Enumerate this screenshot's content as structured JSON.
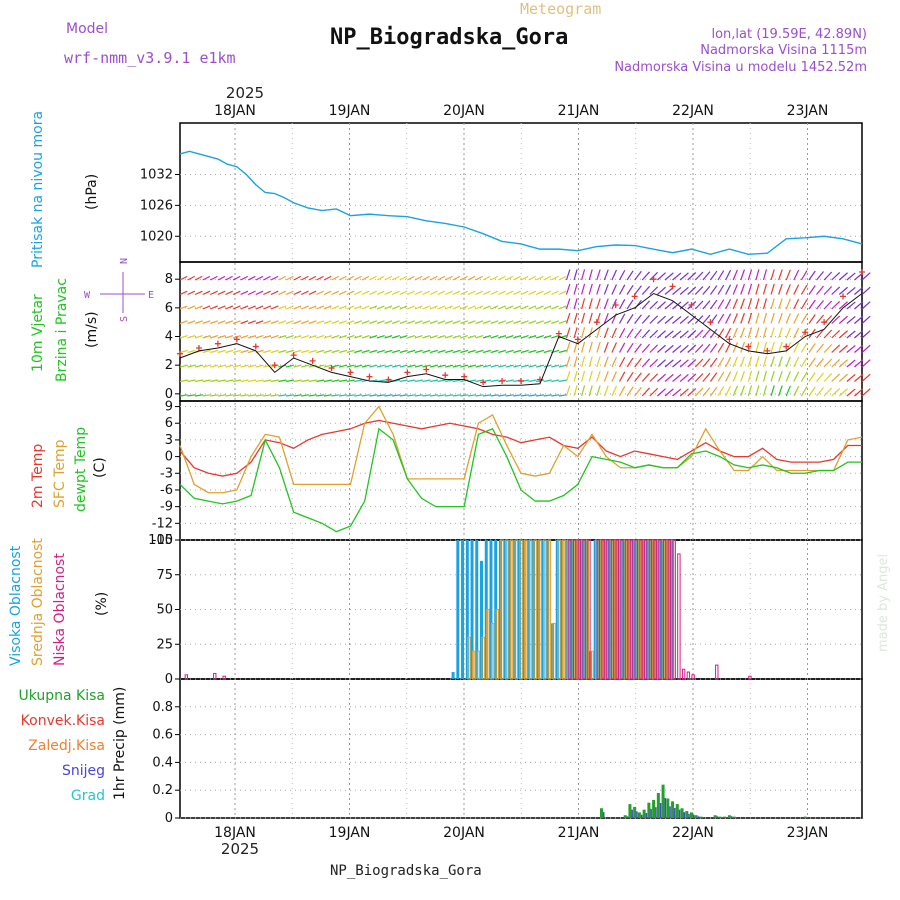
{
  "header": {
    "model_label": "Model",
    "model_name": "wrf-nmm_v3.9.1 e1km",
    "meteogram": "Meteogram",
    "station": "NP_Biogradska_Gora",
    "lonlat": "lon,lat (19.59E, 42.89N)",
    "elevation": "Nadmorska Visina 1115m",
    "model_elevation": "Nadmorska Visina u modelu 1452.52m",
    "watermark": "made by Angel",
    "footer_station": "NP_Biogradska_Gora"
  },
  "colors": {
    "pressure": "#1aa3e0",
    "temp": "#e8382e",
    "sfc_temp": "#e0a030",
    "dewpoint": "#22c422",
    "high_cloud": "#1aa3e0",
    "mid_cloud": "#e0a030",
    "low_cloud": "#d01f87",
    "precip_total": "#22a02a",
    "precip_conv": "#e8382e",
    "precip_strat": "#f08030",
    "snow": "#4646d6",
    "graupel": "#20c8c8",
    "model_label": "#9b4fcc"
  },
  "time_axis": {
    "year": "2025",
    "days": [
      "18JAN",
      "19JAN",
      "20JAN",
      "21JAN",
      "22JAN",
      "23JAN"
    ]
  },
  "panels": {
    "pressure": {
      "ylabel1": "Pritisak na nivou mora",
      "unit": "(hPa)",
      "ticks": [
        "1020",
        "1026",
        "1032"
      ]
    },
    "wind": {
      "ylabel1": "10m Vjetar",
      "ylabel2": "Brzina i Pravac",
      "unit": "(m/s)",
      "compass_n": "N",
      "compass_s": "S",
      "compass_w": "W",
      "compass_e": "E",
      "ticks": [
        "0",
        "2",
        "4",
        "6",
        "8"
      ]
    },
    "temp": {
      "ylabel1": "2m Temp",
      "ylabel2": "SFC Temp",
      "ylabel3": "dewpt Temp",
      "unit": "(C)",
      "ticks": [
        "-15",
        "-12",
        "-9",
        "-6",
        "-3",
        "0",
        "3",
        "6",
        "9"
      ]
    },
    "cloud": {
      "ylabel1": "Visoka Oblacnost",
      "ylabel2": "Srednja Oblacnost",
      "ylabel3": "Niska Oblacnost",
      "unit": "(%)",
      "ticks": [
        "0",
        "25",
        "50",
        "75",
        "100"
      ]
    },
    "precip": {
      "legend_total": "Ukupna Kisa",
      "legend_conv": "Konvek.Kisa",
      "legend_strat": "Zaledj.Kisa",
      "legend_snow": "Snijeg",
      "legend_graupel": "Grad",
      "unit": "1hr Precip (mm)",
      "ticks": [
        "0",
        "0.2",
        "0.4",
        "0.6",
        "0.8"
      ]
    }
  },
  "chart_data": [
    {
      "type": "line",
      "title": "Pritisak na nivou mora",
      "ylabel": "(hPa)",
      "ylim": [
        1015,
        1042
      ],
      "x_hours": [
        0,
        2,
        4,
        6,
        8,
        10,
        12,
        14,
        16,
        18,
        20,
        22,
        24,
        27,
        30,
        33,
        36,
        40,
        44,
        48,
        52,
        56,
        60,
        64,
        68,
        72,
        76,
        80,
        84,
        88,
        92,
        96,
        100,
        104,
        108,
        112,
        116,
        120,
        124,
        128,
        132,
        136,
        140,
        144
      ],
      "series": [
        {
          "name": "pressure",
          "values": [
            1036,
            1036.5,
            1036,
            1035.5,
            1035,
            1034,
            1033.5,
            1032,
            1030,
            1028.5,
            1028.3,
            1027.5,
            1026.5,
            1025.5,
            1025,
            1025.3,
            1024,
            1024.3,
            1024,
            1023.8,
            1023,
            1022.5,
            1021.8,
            1020.5,
            1019,
            1018.5,
            1017.5,
            1017.5,
            1017.2,
            1018,
            1018.3,
            1018.2,
            1017.5,
            1016.8,
            1017.5,
            1016.5,
            1017.5,
            1016.5,
            1016.7,
            1019.5,
            1019.7,
            1020,
            1019.5,
            1018.5
          ]
        }
      ]
    },
    {
      "type": "line",
      "title": "10m Vjetar Brzina i Pravac",
      "ylabel": "(m/s)",
      "ylim": [
        -0.5,
        9.2
      ],
      "x_hours": [
        0,
        4,
        8,
        12,
        16,
        20,
        24,
        28,
        32,
        36,
        40,
        44,
        48,
        52,
        56,
        60,
        64,
        68,
        72,
        76,
        80,
        84,
        88,
        92,
        96,
        100,
        104,
        108,
        112,
        116,
        120,
        124,
        128,
        132,
        136,
        140,
        144
      ],
      "series": [
        {
          "name": "wind",
          "values": [
            2.5,
            3.0,
            3.2,
            3.5,
            3.0,
            1.5,
            2.5,
            2.0,
            1.5,
            1.2,
            0.9,
            0.8,
            1.2,
            1.4,
            1.0,
            1.0,
            0.5,
            0.6,
            0.6,
            0.7,
            4.0,
            3.5,
            4.5,
            5.5,
            6.0,
            7.0,
            6.5,
            5.5,
            4.5,
            3.5,
            3.0,
            2.8,
            3.0,
            4.0,
            4.5,
            6.0,
            7.0
          ]
        },
        {
          "name": "gust",
          "values": [
            2.8,
            3.2,
            3.5,
            3.8,
            3.3,
            2.0,
            2.7,
            2.3,
            1.8,
            1.5,
            1.2,
            1.0,
            1.5,
            1.7,
            1.3,
            1.2,
            0.8,
            0.9,
            0.9,
            1.0,
            4.2,
            3.8,
            5.0,
            6.2,
            6.8,
            8.0,
            7.5,
            6.2,
            5.0,
            3.8,
            3.3,
            3.0,
            3.3,
            4.3,
            5.0,
            6.8,
            8.5
          ]
        }
      ]
    },
    {
      "type": "line",
      "title": "2m Temp / SFC Temp / dewpt Temp",
      "ylabel": "(C)",
      "ylim": [
        -15,
        10
      ],
      "x_hours": [
        0,
        3,
        6,
        9,
        12,
        15,
        18,
        21,
        24,
        27,
        30,
        33,
        36,
        39,
        42,
        45,
        48,
        51,
        54,
        57,
        60,
        63,
        66,
        69,
        72,
        75,
        78,
        81,
        84,
        87,
        90,
        93,
        96,
        99,
        102,
        105,
        108,
        111,
        114,
        117,
        120,
        123,
        126,
        129,
        132,
        135,
        138,
        141,
        144
      ],
      "series": [
        {
          "name": "2m Temp",
          "values": [
            1,
            -2,
            -3,
            -3.5,
            -3,
            -1,
            3,
            2.5,
            1.5,
            3,
            4,
            4.5,
            5,
            6,
            6.5,
            6,
            5.5,
            5,
            5.5,
            6,
            5.5,
            5,
            4,
            3.5,
            2.5,
            3,
            3.5,
            2,
            1.5,
            3.5,
            1,
            0,
            1,
            0.5,
            0,
            -0.5,
            1,
            2.5,
            1,
            0,
            0,
            1.5,
            -0.5,
            -1,
            -1,
            -1,
            -0.5,
            2,
            2
          ]
        },
        {
          "name": "SFC Temp",
          "values": [
            2,
            -5,
            -6.5,
            -6.5,
            -6,
            0,
            4,
            3.5,
            -5,
            -5,
            -5,
            -5,
            -5,
            6,
            9,
            4,
            -4,
            -4,
            -4,
            -4,
            -4,
            6,
            7.5,
            2,
            -3,
            -3.5,
            -3,
            2,
            0,
            4,
            0,
            -2,
            -2,
            -1.5,
            -2,
            -2,
            0,
            5,
            1,
            -2.5,
            -2.5,
            0,
            -2.5,
            -2.5,
            -2.5,
            -2.5,
            -2.5,
            3,
            3.5
          ]
        },
        {
          "name": "dewpt Temp",
          "values": [
            -5,
            -7.5,
            -8,
            -8.5,
            -8,
            -7,
            3,
            -2,
            -10,
            -11,
            -12,
            -13.5,
            -12.5,
            -8,
            5,
            3,
            -4,
            -7.5,
            -9,
            -9,
            -9,
            4,
            5,
            0,
            -6,
            -8,
            -8,
            -7,
            -5,
            0,
            -0.5,
            -1,
            -2,
            -1.5,
            -2,
            -2,
            0.5,
            1,
            0,
            -1.5,
            -2,
            -1.5,
            -2,
            -3,
            -3,
            -2.5,
            -2.5,
            -1,
            -1
          ]
        }
      ]
    },
    {
      "type": "bar",
      "title": "Oblacnost",
      "ylabel": "(%)",
      "ylim": [
        0,
        100
      ],
      "x_hours": [
        1,
        7,
        9,
        58,
        59,
        60,
        61,
        62,
        63,
        64,
        65,
        66,
        67,
        68,
        69,
        70,
        71,
        72,
        73,
        74,
        75,
        76,
        77,
        78,
        79,
        80,
        81,
        82,
        83,
        84,
        85,
        86,
        87,
        88,
        89,
        90,
        91,
        92,
        93,
        94,
        95,
        96,
        97,
        98,
        99,
        100,
        101,
        102,
        103,
        104,
        105,
        106,
        107,
        108,
        113,
        120,
        122,
        130,
        138
      ],
      "series": [
        {
          "name": "Visoka Oblacnost",
          "values": [
            0,
            0,
            0,
            5,
            100,
            100,
            100,
            100,
            100,
            85,
            100,
            100,
            100,
            100,
            100,
            100,
            100,
            100,
            100,
            100,
            100,
            100,
            100,
            100,
            40,
            100,
            100,
            100,
            100,
            100,
            100,
            100,
            20,
            100,
            100,
            100,
            100,
            100,
            100,
            100,
            100,
            100,
            100,
            100,
            100,
            100,
            100,
            100,
            100,
            100,
            0,
            0,
            0,
            0,
            0,
            0,
            0,
            0,
            0
          ]
        },
        {
          "name": "Srednja Oblacnost",
          "values": [
            0,
            0,
            0,
            0,
            0,
            0,
            30,
            20,
            20,
            30,
            50,
            40,
            50,
            100,
            100,
            100,
            100,
            100,
            100,
            100,
            100,
            100,
            100,
            100,
            40,
            100,
            100,
            100,
            100,
            100,
            100,
            100,
            20,
            100,
            100,
            100,
            100,
            100,
            100,
            100,
            100,
            100,
            100,
            100,
            100,
            100,
            100,
            100,
            100,
            100,
            0,
            0,
            0,
            0,
            0,
            0,
            0,
            0,
            0
          ]
        },
        {
          "name": "Niska Oblacnost",
          "values": [
            3,
            4,
            2,
            0,
            0,
            0,
            0,
            0,
            0,
            0,
            0,
            0,
            0,
            0,
            0,
            0,
            0,
            0,
            0,
            0,
            0,
            0,
            0,
            0,
            0,
            0,
            0,
            100,
            100,
            100,
            100,
            100,
            0,
            100,
            100,
            100,
            100,
            100,
            100,
            100,
            100,
            100,
            100,
            100,
            100,
            100,
            100,
            100,
            100,
            100,
            90,
            7,
            5,
            3,
            10,
            2,
            0,
            0,
            0
          ]
        }
      ]
    },
    {
      "type": "bar",
      "title": "1hr Precip",
      "ylabel": "(mm)",
      "ylim": [
        0,
        1.0
      ],
      "x_hours": [
        89,
        94,
        95,
        96,
        97,
        98,
        99,
        100,
        101,
        102,
        103,
        104,
        105,
        106,
        107,
        108,
        109,
        110,
        113,
        114,
        115,
        116,
        117,
        132
      ],
      "series": [
        {
          "name": "Ukupna Kisa",
          "values": [
            0.07,
            0.02,
            0.1,
            0.08,
            0.04,
            0.06,
            0.11,
            0.13,
            0.18,
            0.24,
            0.14,
            0.12,
            0.1,
            0.07,
            0.05,
            0.04,
            0.02,
            0.01,
            0.02,
            0.01,
            0.01,
            0.02,
            0.01,
            0.01
          ]
        }
      ]
    }
  ]
}
